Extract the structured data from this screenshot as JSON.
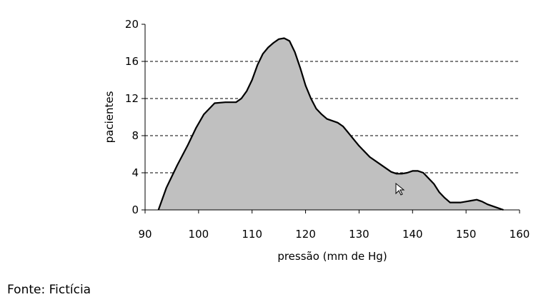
{
  "chart_data": {
    "type": "area",
    "xlabel": "pressão (mm de Hg)",
    "ylabel": "pacientes",
    "xlim": [
      90,
      160
    ],
    "ylim": [
      0,
      20
    ],
    "x_ticks": [
      "90",
      "100",
      "110",
      "120",
      "130",
      "140",
      "150",
      "160"
    ],
    "y_ticks": [
      "0",
      "4",
      "8",
      "12",
      "16",
      "20"
    ],
    "grid": "horizontal dashed",
    "fill_color": "#c0c0c0",
    "line_color": "#000000",
    "series": [
      {
        "x": [
          92.5,
          94,
          96,
          98,
          99.5,
          101,
          103,
          105,
          107,
          108,
          109,
          110,
          111,
          112,
          113,
          114,
          115,
          116,
          117,
          118,
          119,
          120,
          121,
          122,
          123,
          124,
          125,
          126,
          127,
          128,
          129,
          130,
          132,
          134,
          136,
          137,
          138,
          139,
          140,
          141,
          142,
          143,
          144,
          145,
          146,
          147,
          148,
          149,
          150,
          151,
          152,
          153,
          154,
          155,
          156,
          157
        ],
        "y": [
          0,
          2.4,
          4.8,
          7.0,
          8.8,
          10.3,
          11.5,
          11.6,
          11.6,
          12.0,
          12.8,
          14.0,
          15.6,
          16.8,
          17.5,
          18.0,
          18.4,
          18.5,
          18.2,
          17.0,
          15.3,
          13.4,
          12.0,
          10.9,
          10.3,
          9.8,
          9.6,
          9.4,
          9.0,
          8.3,
          7.6,
          6.9,
          5.7,
          4.9,
          4.1,
          3.9,
          3.9,
          4.0,
          4.2,
          4.2,
          4.0,
          3.4,
          2.8,
          1.9,
          1.3,
          0.8,
          0.8,
          0.8,
          0.9,
          1.0,
          1.1,
          0.9,
          0.6,
          0.4,
          0.2,
          0
        ]
      }
    ]
  },
  "caption": "Fonte: Fictícia"
}
